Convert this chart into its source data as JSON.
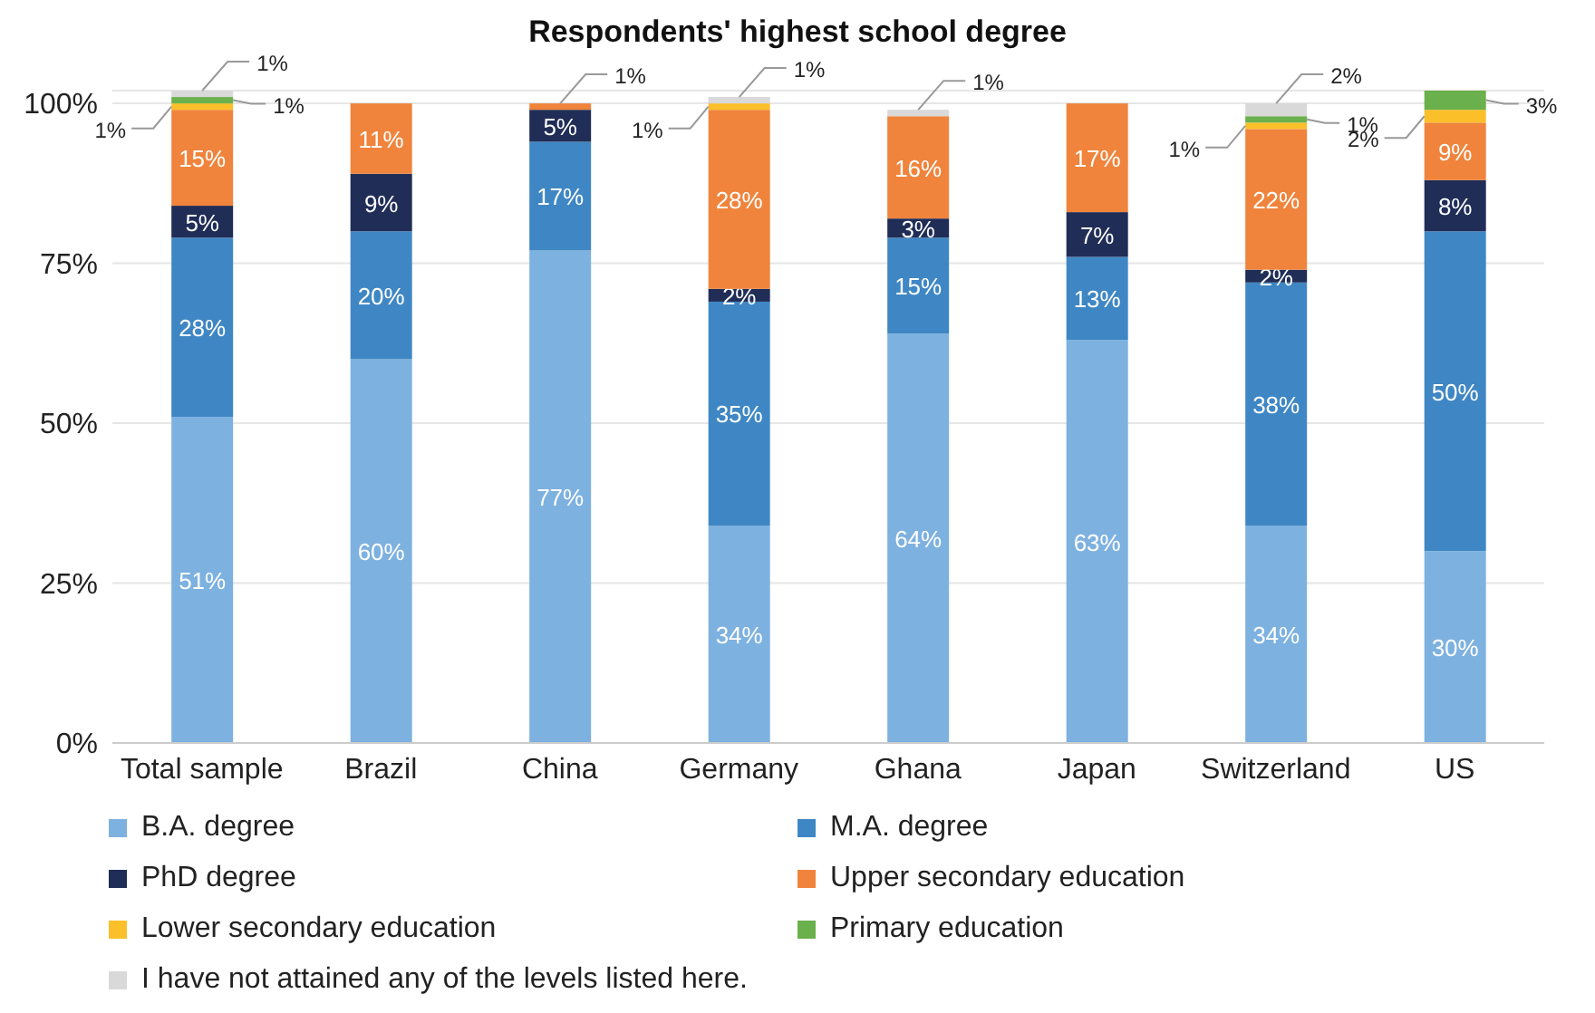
{
  "chart_data": {
    "type": "bar",
    "title": "Respondents' highest school degree",
    "stacked": true,
    "categories": [
      "Total sample",
      "Brazil",
      "China",
      "Germany",
      "Ghana",
      "Japan",
      "Switzerland",
      "US"
    ],
    "ylim": [
      0,
      102
    ],
    "yticks": [
      {
        "value": 0,
        "label": "0%"
      },
      {
        "value": 25,
        "label": "25%"
      },
      {
        "value": 50,
        "label": "50%"
      },
      {
        "value": 75,
        "label": "75%"
      },
      {
        "value": 100,
        "label": "100%"
      }
    ],
    "grid": "y",
    "legend": "bottom",
    "series": [
      {
        "name": "B.A. degree",
        "color": "#7db1e0",
        "values": [
          51,
          60,
          77,
          34,
          64,
          63,
          34,
          30
        ],
        "value_labels": [
          "51%",
          "60%",
          "77%",
          "34%",
          "64%",
          "63%",
          "34%",
          "30%"
        ]
      },
      {
        "name": "M.A. degree",
        "color": "#3f87c4",
        "values": [
          28,
          20,
          17,
          35,
          15,
          13,
          38,
          50
        ],
        "value_labels": [
          "28%",
          "20%",
          "17%",
          "35%",
          "15%",
          "13%",
          "38%",
          "50%"
        ]
      },
      {
        "name": "PhD degree",
        "color": "#1f2d57",
        "values": [
          5,
          9,
          5,
          2,
          3,
          7,
          2,
          8
        ],
        "value_labels": [
          "5%",
          "9%",
          "5%",
          "2%",
          "3%",
          "7%",
          "2%",
          "8%"
        ]
      },
      {
        "name": "Upper secondary education",
        "color": "#f0843c",
        "values": [
          15,
          11,
          1,
          28,
          16,
          17,
          22,
          9
        ],
        "value_labels": [
          "15%",
          "11%",
          "1%",
          "28%",
          "16%",
          "17%",
          "22%",
          "9%"
        ]
      },
      {
        "name": "Lower secondary education",
        "color": "#fbbf2a",
        "values": [
          1,
          null,
          null,
          1,
          null,
          null,
          1,
          2
        ],
        "value_labels": [
          "1%",
          null,
          null,
          "1%",
          null,
          null,
          "1%",
          "2%"
        ]
      },
      {
        "name": "Primary education",
        "color": "#6ab04c",
        "values": [
          1,
          null,
          null,
          null,
          null,
          null,
          1,
          3
        ],
        "value_labels": [
          "1%",
          null,
          null,
          null,
          null,
          null,
          "1%",
          "3%"
        ]
      },
      {
        "name": "I have not attained any of the levels listed here.",
        "color": "#d9d9d9",
        "values": [
          1,
          null,
          null,
          1,
          1,
          null,
          2,
          null
        ],
        "value_labels": [
          "1%",
          null,
          null,
          "1%",
          "1%",
          null,
          "2%",
          null
        ]
      }
    ]
  }
}
